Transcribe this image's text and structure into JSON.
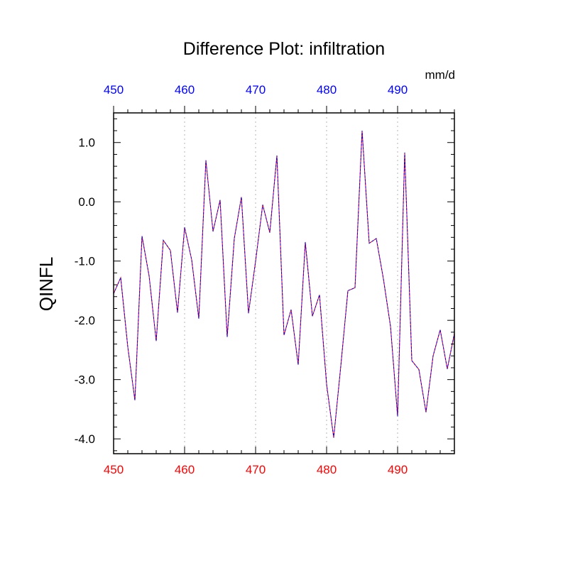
{
  "chart_data": {
    "type": "line",
    "title": "Difference Plot: infiltration",
    "units": "mm/d",
    "ylabel": "QINFL",
    "xlabel": "",
    "xlim": [
      450,
      498
    ],
    "ylim": [
      -4.25,
      1.5
    ],
    "xticks": [
      450,
      460,
      470,
      480,
      490
    ],
    "xtick_labels": [
      "450",
      "460",
      "470",
      "480",
      "490"
    ],
    "top_xtick_labels": [
      "450",
      "460",
      "470",
      "480",
      "490"
    ],
    "yticks": [
      1.0,
      0.0,
      -1.0,
      -2.0,
      -3.0,
      -4.0
    ],
    "ytick_labels": [
      "1.0",
      "0.0",
      "-1.0",
      "-2.0",
      "-3.0",
      "-4.0"
    ],
    "grid": "vertical dotted at major x ticks",
    "colors": {
      "bottom_axis": "#ff0000",
      "top_axis": "#0000ff",
      "series_a": "#ff0000",
      "series_b": "#0000ff",
      "grid": "#b4b4b4"
    },
    "series": [
      {
        "color": "#0000ff",
        "dash": "dashed",
        "x": [
          450,
          451,
          452,
          453,
          454,
          455,
          456,
          457,
          458,
          459,
          460,
          461,
          462,
          463,
          464,
          465,
          466,
          467,
          468,
          469,
          470,
          471,
          472,
          473,
          474,
          475,
          476,
          477,
          478,
          479,
          480,
          481,
          482,
          483,
          484,
          485,
          486,
          487,
          488,
          489,
          490,
          491,
          492,
          493,
          494,
          495,
          496,
          497,
          498
        ],
        "y": [
          -1.55,
          -1.28,
          -2.45,
          -3.35,
          -0.58,
          -1.25,
          -2.35,
          -0.65,
          -0.82,
          -1.87,
          -0.43,
          -0.98,
          -1.97,
          0.7,
          -0.5,
          0.03,
          -2.28,
          -0.62,
          0.08,
          -1.88,
          -1.0,
          -0.05,
          -0.52,
          0.78,
          -2.25,
          -1.82,
          -2.75,
          -0.68,
          -1.93,
          -1.57,
          -3.08,
          -3.98,
          -2.77,
          -1.5,
          -1.45,
          1.2,
          -0.7,
          -0.62,
          -1.3,
          -2.1,
          -3.62,
          0.83,
          -2.68,
          -2.83,
          -3.55,
          -2.6,
          -2.16,
          -2.82,
          -2.22
        ]
      }
    ]
  }
}
